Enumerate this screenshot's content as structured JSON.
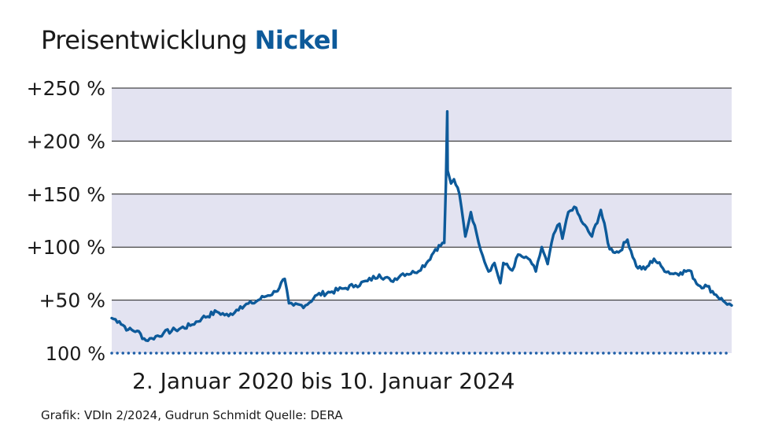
{
  "header": {
    "title_main": "Preisentwicklung",
    "title_accent": "Nickel"
  },
  "colors": {
    "accent": "#0d5a9a",
    "band": "#e3e3f1",
    "gridline": "#1a1a1a",
    "baseline": "#1f5fa8"
  },
  "subtitle": "2. Januar 2020 bis 10. Januar 2024",
  "credit": "Grafik: VDIn 2/2024, Gudrun Schmidt Quelle: DERA",
  "chart_data": {
    "type": "line",
    "title": "Preisentwicklung Nickel",
    "xlabel": "",
    "ylabel": "",
    "x_range": [
      "2020-01-02",
      "2024-01-10"
    ],
    "ylim": [
      0,
      250
    ],
    "grid": true,
    "legend": "none",
    "ytick_values": [
      0,
      50,
      100,
      150,
      200,
      250
    ],
    "ytick_labels": [
      "100 %",
      "+50 %",
      "+100 %",
      "+150 %",
      "+200 %",
      "+250 %"
    ],
    "series": [
      {
        "x": [
          "2020-01-02",
          "2020-01-20",
          "2020-02-10",
          "2020-03-02",
          "2020-03-23",
          "2020-04-06",
          "2020-05-04",
          "2020-06-01",
          "2020-07-06",
          "2020-08-03",
          "2020-09-07",
          "2020-10-05",
          "2020-11-02",
          "2020-11-30",
          "2020-12-28",
          "2021-01-25",
          "2021-02-15",
          "2021-02-25",
          "2021-03-08",
          "2021-04-05",
          "2021-05-03",
          "2021-06-07",
          "2021-07-05",
          "2021-08-02",
          "2021-08-30",
          "2021-09-27",
          "2021-10-25",
          "2021-11-22",
          "2021-12-20",
          "2022-01-17",
          "2022-02-07",
          "2022-02-28",
          "2022-03-04",
          "2022-03-07",
          "2022-03-08",
          "2022-03-16",
          "2022-03-23",
          "2022-04-05",
          "2022-04-19",
          "2022-05-02",
          "2022-05-16",
          "2022-05-30",
          "2022-06-13",
          "2022-06-27",
          "2022-07-11",
          "2022-07-18",
          "2022-08-08",
          "2022-08-22",
          "2022-09-05",
          "2022-09-19",
          "2022-10-03",
          "2022-10-17",
          "2022-10-31",
          "2022-11-14",
          "2022-11-28",
          "2022-12-05",
          "2022-12-19",
          "2023-01-02",
          "2023-01-23",
          "2023-02-13",
          "2023-03-06",
          "2023-03-27",
          "2023-04-17",
          "2023-05-08",
          "2023-05-29",
          "2023-06-19",
          "2023-07-10",
          "2023-07-31",
          "2023-08-21",
          "2023-09-11",
          "2023-10-02",
          "2023-10-23",
          "2023-11-13",
          "2023-12-04",
          "2023-12-25",
          "2024-01-10"
        ],
        "values": [
          33,
          30,
          22,
          21,
          12,
          14,
          19,
          22,
          26,
          33,
          39,
          35,
          44,
          47,
          53,
          58,
          70,
          47,
          45,
          45,
          55,
          58,
          61,
          64,
          68,
          74,
          68,
          75,
          76,
          85,
          98,
          104,
          160,
          228,
          172,
          160,
          164,
          150,
          110,
          133,
          112,
          92,
          77,
          85,
          66,
          85,
          78,
          93,
          90,
          88,
          77,
          100,
          84,
          112,
          122,
          108,
          133,
          138,
          122,
          110,
          135,
          98,
          95,
          107,
          82,
          79,
          89,
          80,
          75,
          76,
          78,
          64,
          63,
          55,
          48,
          45
        ]
      }
    ]
  }
}
